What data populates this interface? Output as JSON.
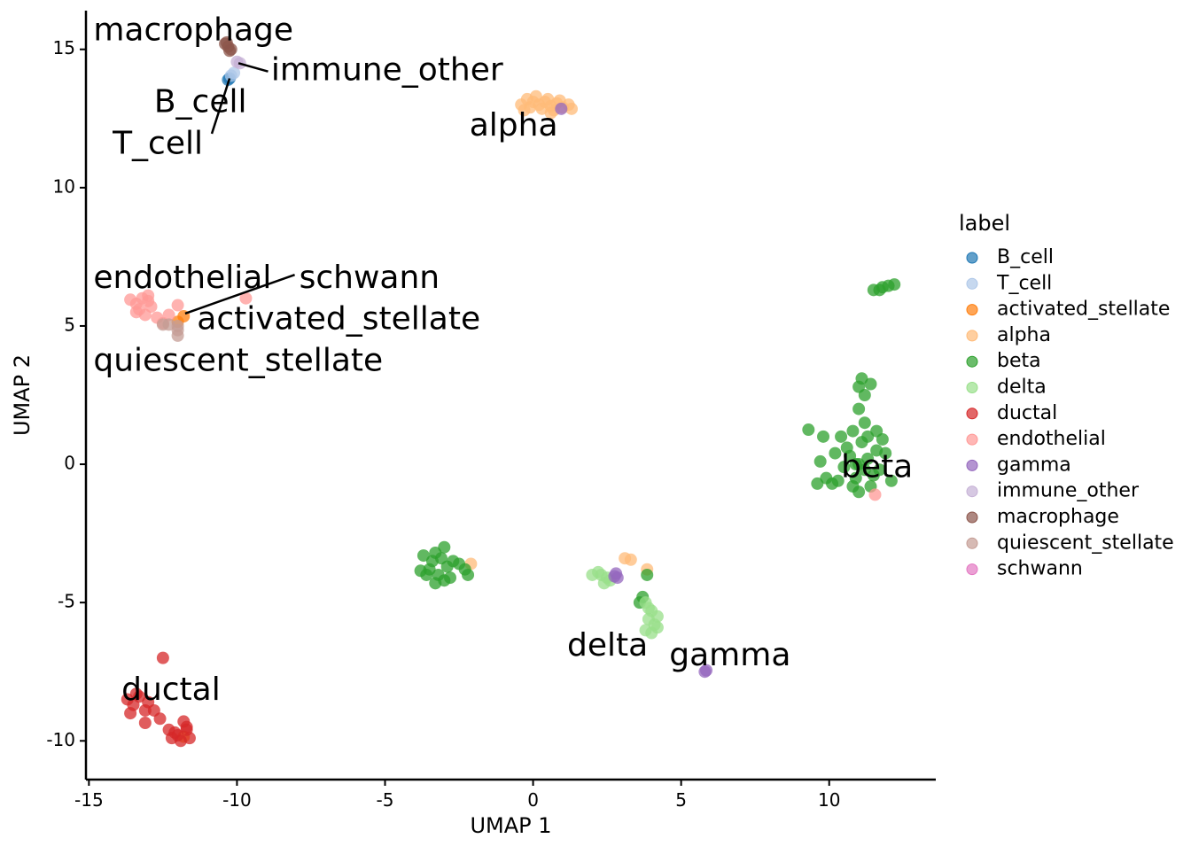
{
  "chart_data": {
    "type": "scatter",
    "xlabel": "UMAP 1",
    "ylabel": "UMAP 2",
    "xlim": [
      -15.1,
      13.6
    ],
    "ylim": [
      -11.4,
      16.4
    ],
    "xticks": [
      -15,
      -10,
      -5,
      0,
      5,
      10
    ],
    "xtick_labels": [
      "-15",
      "-10",
      "-5",
      "0",
      "5",
      "10"
    ],
    "yticks": [
      -10,
      -5,
      0,
      5,
      10,
      15
    ],
    "ytick_labels": [
      "-10",
      "-5",
      "0",
      "5",
      "10",
      "15"
    ],
    "grid": false,
    "legend_position": "right",
    "legend": {
      "title": "label",
      "entries": [
        {
          "name": "B_cell",
          "color": "#1f77b4"
        },
        {
          "name": "T_cell",
          "color": "#aec7e8"
        },
        {
          "name": "activated_stellate",
          "color": "#ff7f0e"
        },
        {
          "name": "alpha",
          "color": "#ffbb78"
        },
        {
          "name": "beta",
          "color": "#2ca02c"
        },
        {
          "name": "delta",
          "color": "#98df8a"
        },
        {
          "name": "ductal",
          "color": "#d62728"
        },
        {
          "name": "endothelial",
          "color": "#ff9896"
        },
        {
          "name": "gamma",
          "color": "#9467bd"
        },
        {
          "name": "immune_other",
          "color": "#c5b0d5"
        },
        {
          "name": "macrophage",
          "color": "#8c564b"
        },
        {
          "name": "quiescent_stellate",
          "color": "#c49c94"
        },
        {
          "name": "schwann",
          "color": "#e377c2"
        }
      ]
    },
    "series": [
      {
        "name": "B_cell",
        "color": "#1f77b4",
        "points": [
          [
            -10.25,
            13.95
          ],
          [
            -10.3,
            13.9
          ]
        ]
      },
      {
        "name": "T_cell",
        "color": "#aec7e8",
        "points": [
          [
            -10.1,
            14.15
          ],
          [
            -10.2,
            14.05
          ]
        ]
      },
      {
        "name": "activated_stellate",
        "color": "#ff7f0e",
        "points": [
          [
            -11.8,
            5.35
          ],
          [
            -12.0,
            5.15
          ],
          [
            -11.8,
            -9.85
          ]
        ]
      },
      {
        "name": "alpha",
        "color": "#ffbb78",
        "points": [
          [
            -0.2,
            13.2
          ],
          [
            0.0,
            13.1
          ],
          [
            0.2,
            13.0
          ],
          [
            0.4,
            13.1
          ],
          [
            0.6,
            12.95
          ],
          [
            0.8,
            13.05
          ],
          [
            1.0,
            12.9
          ],
          [
            1.2,
            13.0
          ],
          [
            -0.1,
            12.9
          ],
          [
            0.3,
            12.85
          ],
          [
            0.7,
            12.8
          ],
          [
            -0.4,
            13.0
          ],
          [
            0.5,
            13.2
          ],
          [
            0.9,
            13.15
          ],
          [
            1.3,
            12.85
          ],
          [
            0.1,
            13.3
          ],
          [
            -0.3,
            12.8
          ],
          [
            0.6,
            12.7
          ],
          [
            3.1,
            -3.4
          ],
          [
            3.3,
            -3.45
          ],
          [
            3.85,
            -3.8
          ],
          [
            -2.1,
            -3.6
          ]
        ]
      },
      {
        "name": "beta",
        "color": "#2ca02c",
        "points": [
          [
            11.0,
            0.0
          ],
          [
            10.7,
            0.3
          ],
          [
            11.3,
            0.2
          ],
          [
            10.9,
            -0.5
          ],
          [
            11.5,
            -0.4
          ],
          [
            11.1,
            0.8
          ],
          [
            10.8,
            1.2
          ],
          [
            11.2,
            1.5
          ],
          [
            11.0,
            2.0
          ],
          [
            11.2,
            2.5
          ],
          [
            11.4,
            2.9
          ],
          [
            11.0,
            2.8
          ],
          [
            10.5,
            -0.1
          ],
          [
            10.3,
            -0.6
          ],
          [
            11.7,
            -0.2
          ],
          [
            11.9,
            0.4
          ],
          [
            12.1,
            -0.6
          ],
          [
            11.8,
            0.9
          ],
          [
            10.4,
            1.0
          ],
          [
            10.6,
            0.6
          ],
          [
            11.4,
            -0.8
          ],
          [
            11.0,
            -1.0
          ],
          [
            10.8,
            -0.8
          ],
          [
            10.1,
            -0.7
          ],
          [
            9.9,
            -0.5
          ],
          [
            9.6,
            -0.7
          ],
          [
            9.7,
            0.1
          ],
          [
            9.3,
            1.25
          ],
          [
            9.8,
            1.0
          ],
          [
            11.6,
            1.2
          ],
          [
            11.3,
            1.0
          ],
          [
            11.2,
            -0.2
          ],
          [
            10.9,
            0.0
          ],
          [
            11.6,
            0.5
          ],
          [
            11.1,
            3.1
          ],
          [
            10.2,
            0.4
          ],
          [
            11.5,
            6.3
          ],
          [
            11.8,
            6.4
          ],
          [
            12.0,
            6.45
          ],
          [
            12.2,
            6.5
          ],
          [
            11.7,
            6.3
          ],
          [
            -3.3,
            -3.2
          ],
          [
            -3.1,
            -3.4
          ],
          [
            -2.9,
            -3.7
          ],
          [
            -3.5,
            -3.8
          ],
          [
            -3.2,
            -4.0
          ],
          [
            -2.8,
            -4.1
          ],
          [
            -3.6,
            -4.0
          ],
          [
            -3.0,
            -3.0
          ],
          [
            -3.4,
            -3.5
          ],
          [
            -2.7,
            -3.5
          ],
          [
            -3.8,
            -3.85
          ],
          [
            -2.5,
            -3.6
          ],
          [
            -2.3,
            -3.8
          ],
          [
            -3.0,
            -4.2
          ],
          [
            -3.3,
            -4.3
          ],
          [
            -2.2,
            -4.0
          ],
          [
            -3.7,
            -3.3
          ],
          [
            3.7,
            -4.8
          ],
          [
            3.85,
            -4.0
          ],
          [
            3.6,
            -5.0
          ]
        ]
      },
      {
        "name": "delta",
        "color": "#98df8a",
        "points": [
          [
            2.3,
            -4.0
          ],
          [
            2.5,
            -4.1
          ],
          [
            2.2,
            -3.9
          ],
          [
            2.6,
            -4.2
          ],
          [
            2.4,
            -4.3
          ],
          [
            2.0,
            -4.0
          ],
          [
            3.8,
            -5.0
          ],
          [
            4.0,
            -5.3
          ],
          [
            3.9,
            -5.6
          ],
          [
            4.1,
            -5.8
          ],
          [
            3.8,
            -6.0
          ],
          [
            4.2,
            -5.5
          ],
          [
            3.9,
            -5.2
          ],
          [
            4.0,
            -6.1
          ],
          [
            4.2,
            -5.9
          ]
        ]
      },
      {
        "name": "ductal",
        "color": "#d62728",
        "points": [
          [
            -13.5,
            -8.7
          ],
          [
            -13.7,
            -8.5
          ],
          [
            -13.3,
            -8.4
          ],
          [
            -13.1,
            -8.9
          ],
          [
            -13.6,
            -9.0
          ],
          [
            -13.0,
            -8.6
          ],
          [
            -12.8,
            -8.9
          ],
          [
            -13.4,
            -8.3
          ],
          [
            -12.5,
            -7.0
          ],
          [
            -13.1,
            -9.35
          ],
          [
            -12.3,
            -9.6
          ],
          [
            -12.0,
            -9.8
          ],
          [
            -11.7,
            -9.5
          ],
          [
            -11.9,
            -10.0
          ],
          [
            -12.1,
            -9.7
          ],
          [
            -11.6,
            -9.9
          ],
          [
            -12.2,
            -9.9
          ],
          [
            -11.8,
            -9.3
          ],
          [
            -12.6,
            -9.2
          ],
          [
            -11.7,
            -9.6
          ]
        ]
      },
      {
        "name": "endothelial",
        "color": "#ff9896",
        "points": [
          [
            -13.4,
            5.8
          ],
          [
            -13.2,
            6.0
          ],
          [
            -13.0,
            5.9
          ],
          [
            -13.3,
            5.6
          ],
          [
            -13.6,
            5.95
          ],
          [
            -13.1,
            5.4
          ],
          [
            -12.9,
            5.7
          ],
          [
            -12.7,
            5.3
          ],
          [
            -12.5,
            5.1
          ],
          [
            -12.3,
            5.4
          ],
          [
            -12.0,
            5.75
          ],
          [
            -13.4,
            5.5
          ],
          [
            -13.0,
            6.1
          ],
          [
            -9.7,
            6.0
          ],
          [
            11.55,
            -1.1
          ]
        ]
      },
      {
        "name": "gamma",
        "color": "#9467bd",
        "points": [
          [
            5.85,
            -7.45
          ],
          [
            5.8,
            -7.5
          ],
          [
            2.75,
            -4.05
          ],
          [
            2.85,
            -4.1
          ],
          [
            2.8,
            -3.95
          ],
          [
            0.95,
            12.85
          ]
        ]
      },
      {
        "name": "immune_other",
        "color": "#c5b0d5",
        "points": [
          [
            -10.0,
            14.55
          ],
          [
            -9.9,
            14.5
          ]
        ]
      },
      {
        "name": "macrophage",
        "color": "#8c564b",
        "points": [
          [
            -10.4,
            15.2
          ],
          [
            -10.3,
            15.1
          ],
          [
            -10.2,
            15.0
          ],
          [
            -10.35,
            15.25
          ],
          [
            -10.25,
            14.95
          ]
        ]
      },
      {
        "name": "quiescent_stellate",
        "color": "#c49c94",
        "points": [
          [
            -12.0,
            4.85
          ],
          [
            -12.0,
            4.65
          ],
          [
            -12.0,
            5.0
          ],
          [
            -12.3,
            5.05
          ],
          [
            -12.5,
            5.05
          ]
        ]
      },
      {
        "name": "schwann",
        "color": "#e377c2",
        "points": []
      }
    ],
    "cluster_labels": [
      {
        "text": "macrophage",
        "x": -14.85,
        "y": 15.65,
        "anchor": "start"
      },
      {
        "text": "immune_other",
        "x": -8.85,
        "y": 14.2,
        "anchor": "start"
      },
      {
        "text": "B_cell",
        "x": -12.8,
        "y": 13.05,
        "anchor": "start"
      },
      {
        "text": "T_cell",
        "x": -14.2,
        "y": 11.55,
        "anchor": "start"
      },
      {
        "text": "alpha",
        "x": -2.15,
        "y": 12.2,
        "anchor": "start"
      },
      {
        "text": "endothelial",
        "x": -14.85,
        "y": 6.7,
        "anchor": "start"
      },
      {
        "text": "schwann",
        "x": -7.9,
        "y": 6.7,
        "anchor": "start"
      },
      {
        "text": "activated_stellate",
        "x": -11.35,
        "y": 5.2,
        "anchor": "start"
      },
      {
        "text": "quiescent_stellate",
        "x": -14.85,
        "y": 3.7,
        "anchor": "start"
      },
      {
        "text": "beta",
        "x": 10.4,
        "y": -0.15,
        "anchor": "start"
      },
      {
        "text": "delta",
        "x": 1.15,
        "y": -6.6,
        "anchor": "start"
      },
      {
        "text": "gamma",
        "x": 4.6,
        "y": -6.95,
        "anchor": "start"
      },
      {
        "text": "ductal",
        "x": -13.9,
        "y": -8.2,
        "anchor": "start"
      }
    ],
    "leader_lines": [
      {
        "from": [
          -9.95,
          14.5
        ],
        "to": [
          -8.95,
          14.2
        ]
      },
      {
        "from": [
          -10.25,
          13.95
        ],
        "to": [
          -10.85,
          11.95
        ]
      },
      {
        "from": [
          -11.75,
          5.45
        ],
        "to": [
          -8.05,
          6.85
        ]
      }
    ]
  }
}
